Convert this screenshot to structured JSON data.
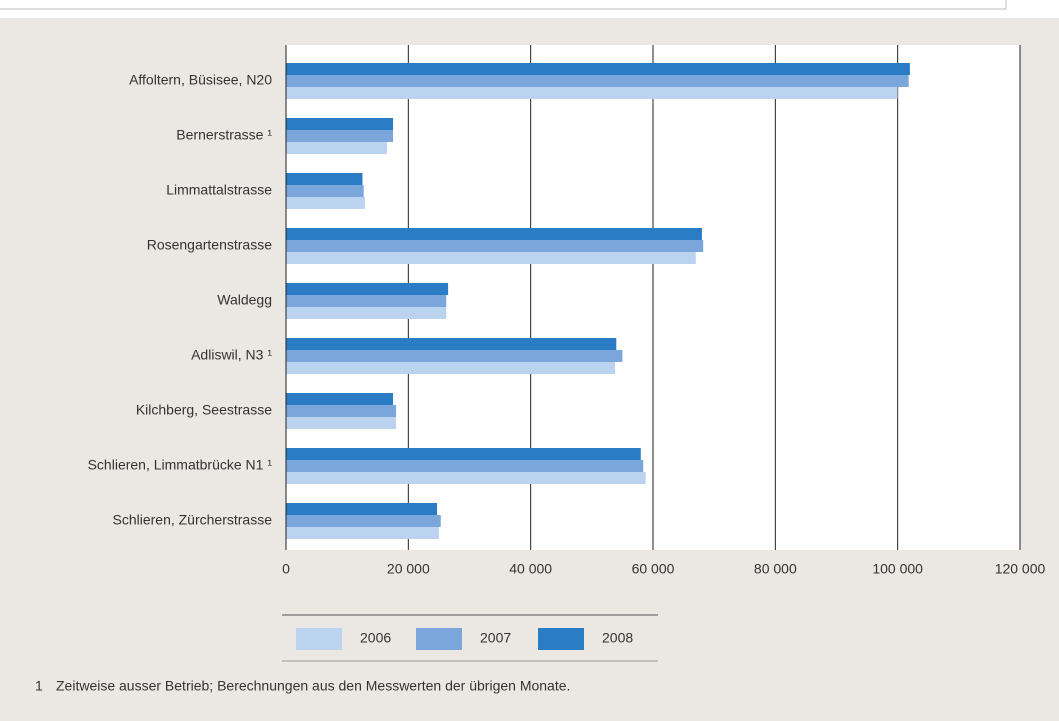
{
  "chart_data": {
    "type": "bar",
    "orientation": "horizontal",
    "categories": [
      "Affoltern, Büsisee, N20",
      "Bernerstrasse ¹",
      "Limmattalstrasse",
      "Rosengartenstrasse",
      "Waldegg",
      "Adliswil, N3 ¹",
      "Kilchberg, Seestrasse",
      "Schlieren, Limmatbrücke N1 ¹",
      "Schlieren, Zürcherstrasse"
    ],
    "series": [
      {
        "name": "2006",
        "color": "#bcd3ef",
        "values": [
          100000,
          16500,
          12900,
          67000,
          26200,
          53800,
          18000,
          58800,
          25000
        ]
      },
      {
        "name": "2007",
        "color": "#7ba6dc",
        "values": [
          101800,
          17500,
          12700,
          68200,
          26200,
          55000,
          18000,
          58400,
          25300
        ]
      },
      {
        "name": "2008",
        "color": "#2a7cc4",
        "values": [
          102000,
          17500,
          12500,
          68000,
          26500,
          54000,
          17500,
          58000,
          24700
        ]
      }
    ],
    "xlim": [
      0,
      120000
    ],
    "xticks": [
      0,
      {
        "value": 20000,
        "label": "20 000"
      },
      {
        "value": 40000,
        "label": "40 000"
      },
      {
        "value": 60000,
        "label": "60 000"
      },
      {
        "value": 80000,
        "label": "80 000"
      },
      {
        "value": 100000,
        "label": "100 000"
      },
      {
        "value": 120000,
        "label": "120 000"
      }
    ],
    "grid": true,
    "legend": "bottom",
    "footnote": {
      "marker": "1",
      "text": "Zeitweise ausser Betrieb; Berechnungen aus den Messwerten der übrigen Monate."
    }
  }
}
